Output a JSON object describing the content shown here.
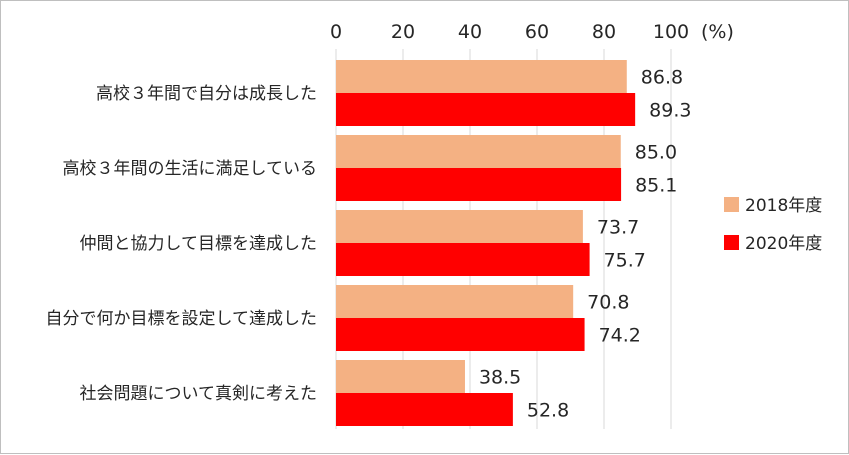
{
  "chart_data": {
    "type": "bar",
    "orientation": "horizontal",
    "categories": [
      "高校３年間で自分は成長した",
      "高校３年間の生活に満足している",
      "仲間と協力して目標を達成した",
      "自分で何か目標を設定して達成した",
      "社会問題について真剣に考えた"
    ],
    "series": [
      {
        "name": "2018年度",
        "color": "#F4B183",
        "values": [
          86.8,
          85.0,
          73.7,
          70.8,
          38.5
        ],
        "labels": [
          "86.8",
          "85.0",
          "73.7",
          "70.8",
          "38.5"
        ]
      },
      {
        "name": "2020年度",
        "color": "#FF0000",
        "values": [
          89.3,
          85.1,
          75.7,
          74.2,
          52.8
        ],
        "labels": [
          "89.3",
          "85.1",
          "75.7",
          "74.2",
          "52.8"
        ]
      }
    ],
    "xlim": [
      0,
      100
    ],
    "xticks": [
      "0",
      "20",
      "40",
      "60",
      "80",
      "100"
    ],
    "xunit": "(%)",
    "axis_position": "top",
    "grid": true,
    "legend_position": "right"
  }
}
